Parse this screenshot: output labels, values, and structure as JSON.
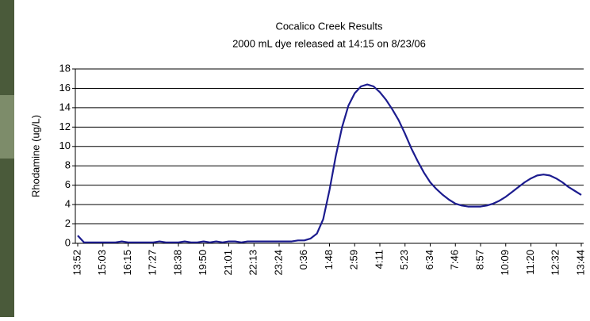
{
  "chart_data": {
    "type": "line",
    "title": "Cocalico Creek Results",
    "subtitle": "2000 mL dye released at 14:15 on 8/23/06",
    "y_label": "Rhodamine (ug/L)",
    "categories": [
      "13:52",
      null,
      null,
      null,
      "15:03",
      null,
      null,
      null,
      "16:15",
      null,
      null,
      null,
      "17:27",
      null,
      null,
      null,
      "18:38",
      null,
      null,
      null,
      "19:50",
      null,
      null,
      null,
      "21:01",
      null,
      null,
      null,
      "22:13",
      null,
      null,
      null,
      "23:24",
      null,
      null,
      null,
      "0:36",
      null,
      null,
      null,
      "1:48",
      null,
      null,
      null,
      "2:59",
      null,
      null,
      null,
      "4:11",
      null,
      null,
      null,
      "5:23",
      null,
      null,
      null,
      "6:34",
      null,
      null,
      null,
      "7:46",
      null,
      null,
      null,
      "8:57",
      null,
      null,
      null,
      "10:09",
      null,
      null,
      null,
      "11:20",
      null,
      null,
      null,
      "12:32",
      null,
      null,
      null,
      "13:44"
    ],
    "values": [
      0.8,
      0.1,
      0.1,
      0.1,
      0.1,
      0.1,
      0.1,
      0.2,
      0.1,
      0.1,
      0.1,
      0.1,
      0.1,
      0.2,
      0.1,
      0.1,
      0.1,
      0.2,
      0.1,
      0.1,
      0.2,
      0.1,
      0.2,
      0.1,
      0.2,
      0.2,
      0.1,
      0.2,
      0.2,
      0.2,
      0.2,
      0.2,
      0.2,
      0.2,
      0.2,
      0.3,
      0.3,
      0.5,
      1.0,
      2.5,
      5.5,
      9,
      12,
      14.2,
      15.5,
      16.2,
      16.4,
      16.2,
      15.6,
      14.8,
      13.8,
      12.7,
      11.3,
      9.8,
      8.5,
      7.3,
      6.3,
      5.6,
      5.0,
      4.5,
      4.1,
      3.9,
      3.8,
      3.8,
      3.8,
      3.9,
      4.1,
      4.4,
      4.8,
      5.3,
      5.8,
      6.3,
      6.7,
      7.0,
      7.1,
      7.0,
      6.7,
      6.3,
      5.8,
      5.4,
      5.0
    ],
    "color": "#1c1c8f",
    "ylim": [
      0,
      18
    ],
    "yticks": [
      0,
      2,
      4,
      6,
      8,
      10,
      12,
      14,
      16,
      18
    ],
    "grid": true
  }
}
